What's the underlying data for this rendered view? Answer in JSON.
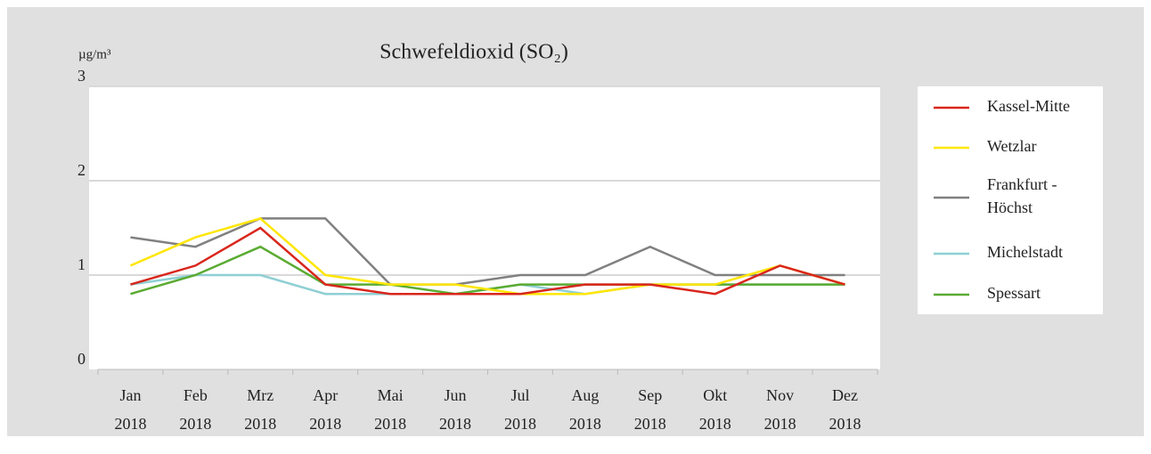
{
  "chart_data": {
    "type": "line",
    "title": "Schwefeldioxid (SO₂)",
    "y_label": "µg/m³",
    "categories": [
      "Jan 2018",
      "Feb 2018",
      "Mrz 2018",
      "Apr 2018",
      "Mai 2018",
      "Jun 2018",
      "Jul 2018",
      "Aug 2018",
      "Sep 2018",
      "Okt 2018",
      "Nov 2018",
      "Dez 2018"
    ],
    "series": [
      {
        "name": "Kassel-Mitte",
        "color": "#d9261c",
        "values": [
          0.9,
          1.1,
          1.5,
          0.9,
          0.8,
          0.8,
          0.8,
          0.9,
          0.9,
          0.8,
          1.1,
          0.9
        ]
      },
      {
        "name": "Wetzlar",
        "color": "#ffe600",
        "values": [
          1.1,
          1.4,
          1.6,
          1.0,
          0.9,
          0.9,
          0.8,
          0.8,
          0.9,
          0.9,
          1.1,
          0.9
        ]
      },
      {
        "name": "Frankfurt - Höchst",
        "color": "#808080",
        "values": [
          1.4,
          1.3,
          1.6,
          1.6,
          0.9,
          0.9,
          1.0,
          1.0,
          1.3,
          1.0,
          1.0,
          1.0
        ]
      },
      {
        "name": "Michelstadt",
        "color": "#8ecfd4",
        "values": [
          0.9,
          1.0,
          1.0,
          0.8,
          0.8,
          0.8,
          0.9,
          0.8,
          0.9,
          0.9,
          0.9,
          0.9
        ]
      },
      {
        "name": "Spessart",
        "color": "#5aab32",
        "values": [
          0.8,
          1.0,
          1.3,
          0.9,
          0.9,
          0.8,
          0.9,
          0.9,
          0.9,
          0.9,
          0.9,
          0.9
        ]
      }
    ],
    "ylim": [
      0,
      3
    ],
    "yticks": [
      0,
      1,
      2,
      3
    ],
    "grid": true,
    "legend": "right"
  }
}
